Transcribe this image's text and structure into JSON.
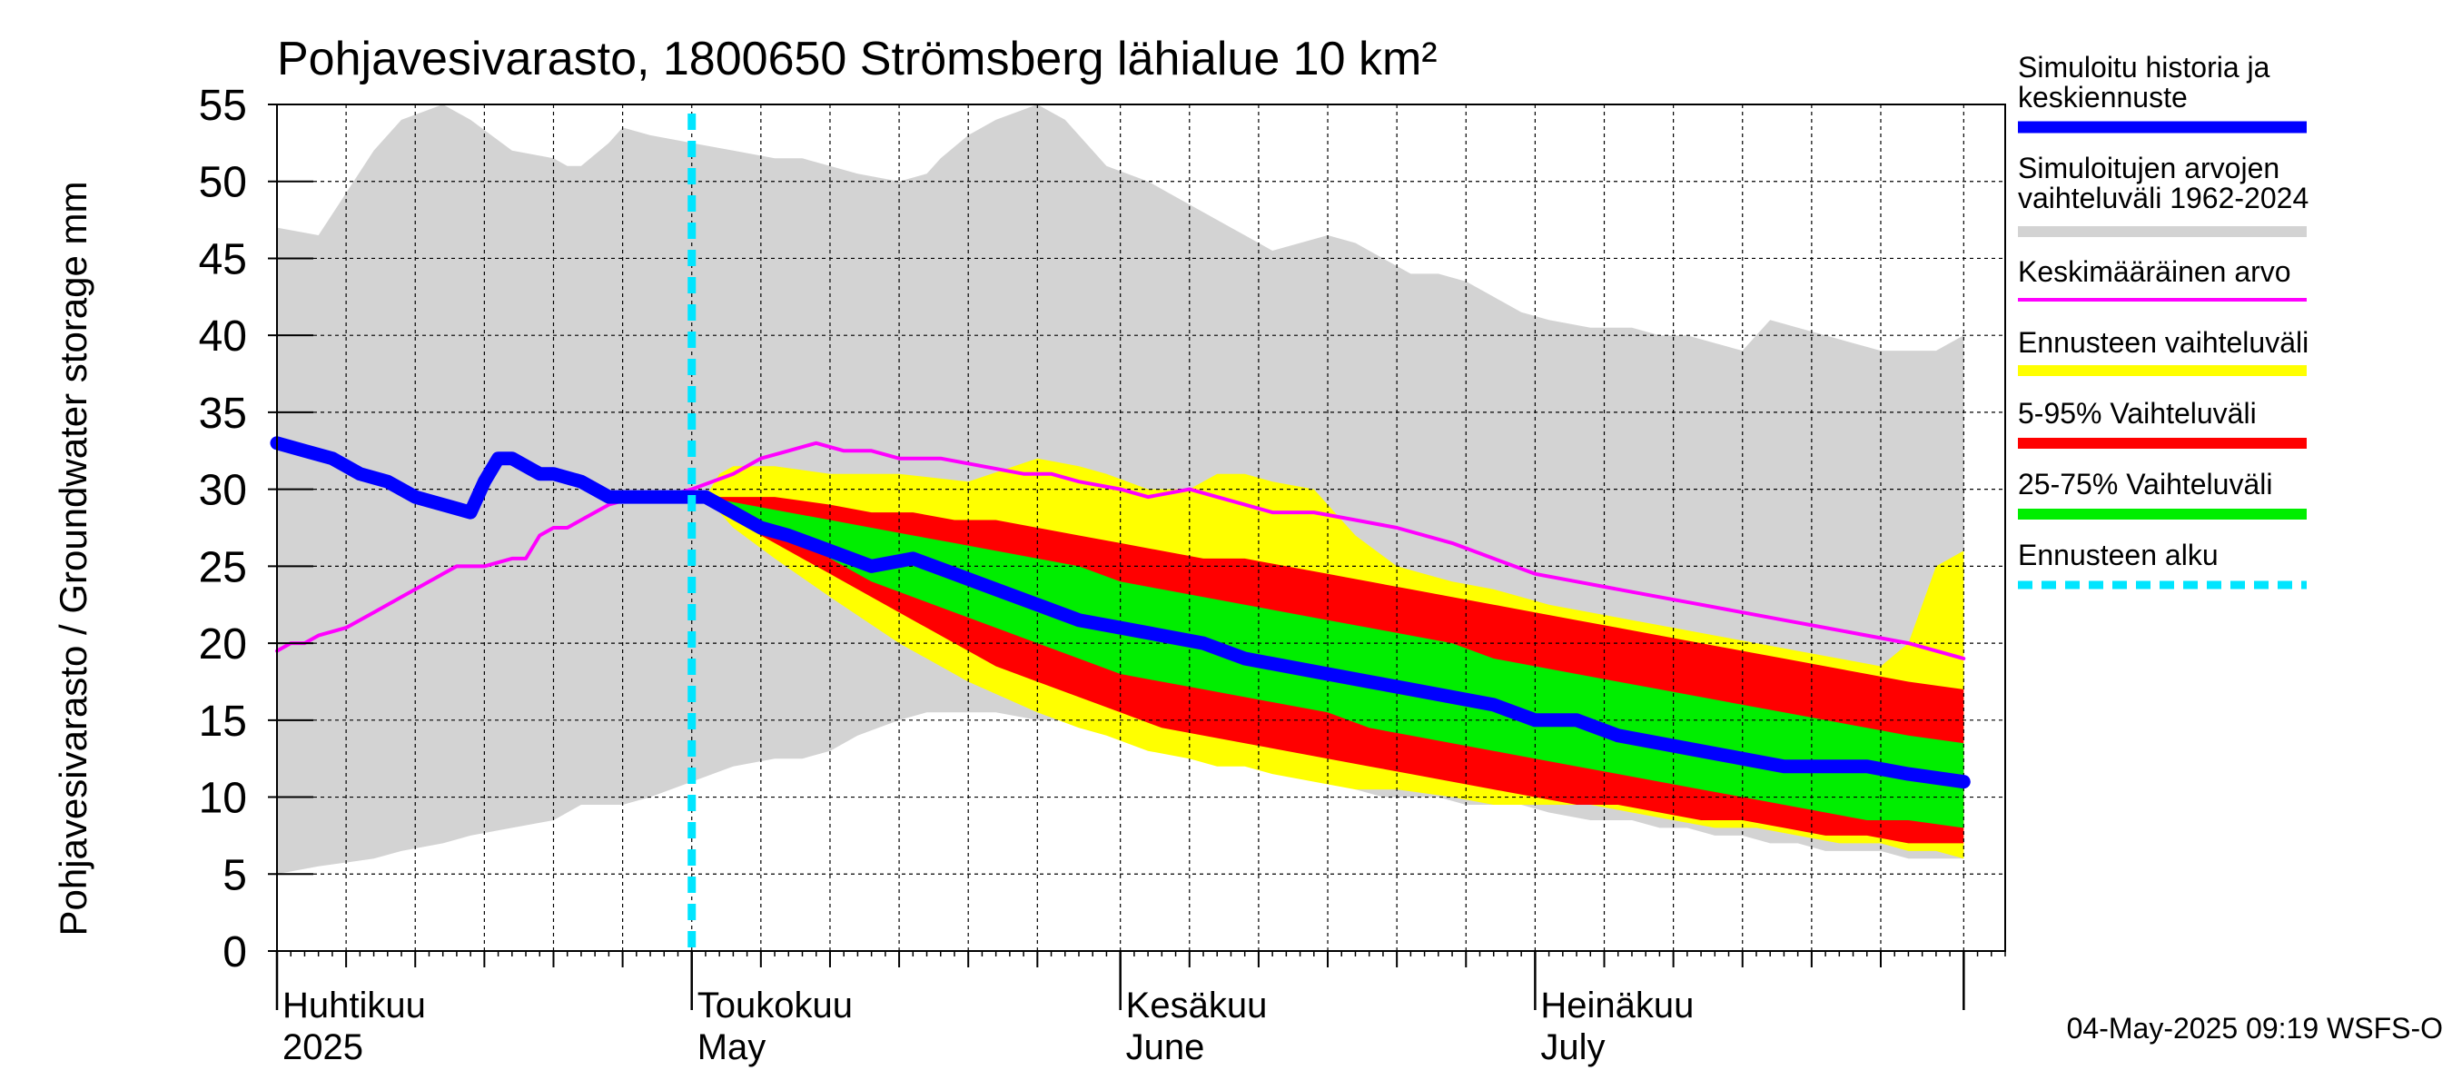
{
  "chart_data": {
    "type": "area",
    "title": "Pohjavesivarasto, 1800650 Strömsberg lähialue 10 km²",
    "ylabel": "Pohjavesivarasto / Groundwater storage   mm",
    "xlabel": "",
    "ylim": [
      0,
      55
    ],
    "yticks": [
      0,
      5,
      10,
      15,
      20,
      25,
      30,
      35,
      40,
      45,
      50,
      55
    ],
    "x_axis": {
      "start_day": 1,
      "end_day": 126,
      "unit": "day index (1 = 1 April 2025)",
      "month_labels": [
        {
          "day": 1,
          "fi": "Huhtikuu",
          "en": "2025"
        },
        {
          "day": 31,
          "fi": "Toukokuu",
          "en": "May"
        },
        {
          "day": 62,
          "fi": "Kesäkuu",
          "en": "June"
        },
        {
          "day": 92,
          "fi": "Heinäkuu",
          "en": "July"
        }
      ],
      "month_boundaries": [
        1,
        31,
        62,
        92,
        123
      ],
      "minor_gridlines_days": [
        6,
        11,
        16,
        21,
        26,
        36,
        41,
        46,
        51,
        56,
        67,
        72,
        77,
        82,
        87,
        97,
        102,
        107,
        112,
        117
      ]
    },
    "forecast_start_day": 31,
    "series": [
      {
        "name": "Simuloitujen arvojen vaihteluväli 1962-2024",
        "kind": "band",
        "color": "#d3d3d3",
        "x": [
          0,
          3,
          7,
          9,
          12,
          14,
          17,
          20,
          21,
          22,
          24,
          25,
          27,
          30,
          33,
          36,
          38,
          40,
          42,
          45,
          47,
          48,
          50,
          52,
          55,
          57,
          59,
          60,
          63,
          65,
          67,
          69,
          70,
          72,
          74,
          76,
          78,
          80,
          82,
          84,
          86,
          88,
          90,
          92,
          95,
          98,
          100,
          102,
          104,
          106,
          108,
          110,
          112,
          114,
          116,
          118,
          120,
          122
        ],
        "upper": [
          47,
          46.5,
          52,
          54,
          55,
          54,
          52,
          51.5,
          51,
          51,
          52.5,
          53.5,
          53,
          52.5,
          52,
          51.5,
          51.5,
          51,
          50.5,
          50,
          50.5,
          51.5,
          53,
          54,
          55,
          54,
          52,
          51,
          50,
          49,
          48,
          47,
          46.5,
          45.5,
          46,
          46.5,
          46,
          45,
          44,
          44,
          43.5,
          42.5,
          41.5,
          41,
          40.5,
          40.5,
          40,
          40,
          39.5,
          39,
          41,
          40.5,
          40,
          39.5,
          39,
          39,
          39,
          40
        ],
        "lower": [
          5,
          5.5,
          6,
          6.5,
          7,
          7.5,
          8,
          8.5,
          9,
          9.5,
          9.5,
          9.5,
          10,
          11,
          12,
          12.5,
          12.5,
          13,
          14,
          15,
          15.5,
          15.5,
          15.5,
          15.5,
          15,
          15,
          15,
          15,
          14.5,
          14,
          13.5,
          13,
          12.5,
          12,
          11.5,
          11,
          10.5,
          10,
          10,
          10,
          9.5,
          9.5,
          9.5,
          9,
          8.5,
          8.5,
          8,
          8,
          7.5,
          7.5,
          7,
          7,
          6.5,
          6.5,
          6.5,
          6,
          6,
          6
        ]
      },
      {
        "name": "Ennusteen vaihteluväli",
        "kind": "band",
        "color": "#ffff00",
        "x": [
          31,
          32,
          33,
          36,
          40,
          45,
          50,
          55,
          58,
          60,
          63,
          66,
          68,
          70,
          72,
          75,
          78,
          81,
          85,
          88,
          90,
          92,
          95,
          98,
          101,
          104,
          107,
          110,
          113,
          116,
          118,
          120,
          122
        ],
        "upper": [
          29.5,
          31,
          31.5,
          31.5,
          31,
          31,
          30.5,
          32,
          31.5,
          31,
          30,
          30,
          31,
          31,
          30.5,
          30,
          27,
          25,
          24,
          23.5,
          23,
          22.5,
          22,
          21.5,
          21,
          20.5,
          20,
          19.5,
          19,
          18.5,
          20,
          25,
          26
        ],
        "lower": [
          29.5,
          28.5,
          27.5,
          25.5,
          23,
          20,
          17.5,
          15.5,
          14.5,
          14,
          13,
          12.5,
          12,
          12,
          11.5,
          11,
          10.5,
          10.5,
          10,
          9.5,
          9.5,
          9.5,
          9.5,
          9,
          8.5,
          8,
          8,
          7.5,
          7,
          7,
          6.5,
          6.5,
          6
        ]
      },
      {
        "name": "5-95% Vaihteluväli",
        "kind": "band",
        "color": "#ff0000",
        "x": [
          31,
          33,
          36,
          40,
          43,
          46,
          49,
          52,
          55,
          58,
          61,
          64,
          67,
          70,
          73,
          76,
          79,
          82,
          85,
          88,
          91,
          94,
          97,
          100,
          103,
          106,
          109,
          112,
          115,
          118,
          122
        ],
        "upper": [
          29.5,
          29.5,
          29.5,
          29,
          28.5,
          28.5,
          28,
          28,
          27.5,
          27,
          26.5,
          26,
          25.5,
          25.5,
          25,
          24.5,
          24,
          23.5,
          23,
          22.5,
          22,
          21.5,
          21,
          20.5,
          20,
          19.5,
          19,
          18.5,
          18,
          17.5,
          17
        ],
        "lower": [
          29.5,
          28,
          26.5,
          24.5,
          23,
          21.5,
          20,
          18.5,
          17.5,
          16.5,
          15.5,
          14.5,
          14,
          13.5,
          13,
          12.5,
          12,
          11.5,
          11,
          10.5,
          10,
          9.5,
          9.5,
          9,
          8.5,
          8.5,
          8,
          7.5,
          7.5,
          7,
          7
        ]
      },
      {
        "name": "25-75% Vaihteluväli",
        "kind": "band",
        "color": "#00ee00",
        "x": [
          31,
          34,
          37,
          40,
          43,
          46,
          49,
          52,
          55,
          58,
          61,
          64,
          67,
          70,
          73,
          76,
          79,
          82,
          85,
          88,
          91,
          94,
          97,
          100,
          103,
          106,
          109,
          112,
          115,
          118,
          122
        ],
        "upper": [
          29.5,
          29,
          28.5,
          28,
          27.5,
          27,
          26.5,
          26,
          25.5,
          25,
          24,
          23.5,
          23,
          22.5,
          22,
          21.5,
          21,
          20.5,
          20,
          19,
          18.5,
          18,
          17.5,
          17,
          16.5,
          16,
          15.5,
          15,
          14.5,
          14,
          13.5
        ],
        "lower": [
          29.5,
          28.5,
          27,
          25.5,
          24,
          23,
          22,
          21,
          20,
          19,
          18,
          17.5,
          17,
          16.5,
          16,
          15.5,
          14.5,
          14,
          13.5,
          13,
          12.5,
          12,
          11.5,
          11,
          10.5,
          10,
          9.5,
          9,
          8.5,
          8.5,
          8
        ]
      },
      {
        "name": "Keskimääräinen arvo",
        "kind": "line",
        "color": "#ff00ff",
        "x": [
          0,
          1,
          2,
          3,
          5,
          7,
          9,
          11,
          12,
          13,
          15,
          17,
          18,
          19,
          20,
          21,
          22,
          24,
          26,
          27,
          28,
          30,
          33,
          35,
          37,
          39,
          41,
          43,
          45,
          48,
          51,
          54,
          56,
          58,
          61,
          63,
          66,
          68,
          70,
          72,
          75,
          78,
          81,
          85,
          88,
          91,
          94,
          97,
          100,
          103,
          106,
          109,
          112,
          115,
          118,
          120,
          122
        ],
        "values": [
          19.5,
          20,
          20,
          20.5,
          21,
          22,
          23,
          24,
          24.5,
          25,
          25,
          25.5,
          25.5,
          27,
          27.5,
          27.5,
          28,
          29,
          29.5,
          29.5,
          29.5,
          30,
          31,
          32,
          32.5,
          33,
          32.5,
          32.5,
          32,
          32,
          31.5,
          31,
          31,
          30.5,
          30,
          29.5,
          30,
          29.5,
          29,
          28.5,
          28.5,
          28,
          27.5,
          26.5,
          25.5,
          24.5,
          24,
          23.5,
          23,
          22.5,
          22,
          21.5,
          21,
          20.5,
          20,
          19.5,
          19
        ]
      },
      {
        "name": "Simuloitu historia ja keskiennuste",
        "kind": "line",
        "color": "#0000ff",
        "x": [
          0,
          2,
          4,
          6,
          8,
          10,
          12,
          14,
          15,
          16,
          17,
          18,
          19,
          20,
          22,
          24,
          26,
          28,
          30,
          31,
          33,
          35,
          37,
          40,
          43,
          46,
          49,
          52,
          55,
          58,
          61,
          64,
          67,
          70,
          73,
          76,
          79,
          82,
          85,
          88,
          91,
          94,
          97,
          100,
          103,
          106,
          109,
          112,
          115,
          118,
          122
        ],
        "values": [
          33,
          32.5,
          32,
          31,
          30.5,
          29.5,
          29,
          28.5,
          30.5,
          32,
          32,
          31.5,
          31,
          31,
          30.5,
          29.5,
          29.5,
          29.5,
          29.5,
          29.5,
          28.5,
          27.5,
          27,
          26,
          25,
          25.5,
          24.5,
          23.5,
          22.5,
          21.5,
          21,
          20.5,
          20,
          19,
          18.5,
          18,
          17.5,
          17,
          16.5,
          16,
          15,
          15,
          14,
          13.5,
          13,
          12.5,
          12,
          12,
          12,
          11.5,
          11
        ]
      },
      {
        "name": "Ennusteen alku",
        "kind": "vline",
        "color": "#00e5ff"
      }
    ],
    "legend": {
      "placement": "right",
      "entries": [
        {
          "label_lines": [
            "Simuloitu historia ja",
            "keskiennuste"
          ],
          "color": "#0000ff",
          "style": "thick"
        },
        {
          "label_lines": [
            "Simuloitujen arvojen",
            "vaihteluväli 1962-2024"
          ],
          "color": "#d3d3d3",
          "style": "medium"
        },
        {
          "label_lines": [
            "Keskimääräinen arvo"
          ],
          "color": "#ff00ff",
          "style": "thin"
        },
        {
          "label_lines": [
            "Ennusteen vaihteluväli"
          ],
          "color": "#ffff00",
          "style": "medium"
        },
        {
          "label_lines": [
            "5-95% Vaihteluväli"
          ],
          "color": "#ff0000",
          "style": "medium"
        },
        {
          "label_lines": [
            "25-75% Vaihteluväli"
          ],
          "color": "#00ee00",
          "style": "medium"
        },
        {
          "label_lines": [
            "Ennusteen alku"
          ],
          "color": "#00e5ff",
          "style": "dashed"
        }
      ]
    },
    "footer": "04-May-2025 09:19 WSFS-O"
  }
}
